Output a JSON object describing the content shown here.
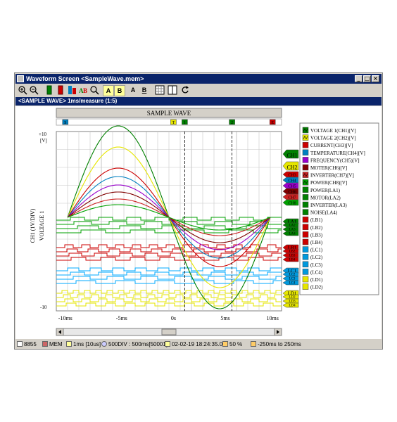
{
  "window": {
    "title": "Waveform Screen <SampleWave.mem>",
    "buttons": [
      "_",
      "□",
      "×"
    ]
  },
  "toolbar": {
    "tools": [
      "zoom-in",
      "zoom-out",
      "ch-up",
      "ch-dn",
      "cursor-a",
      "cursor-b",
      "search",
      "A",
      "B",
      "A",
      "B",
      "grid",
      "split",
      "refresh"
    ]
  },
  "subbar": {
    "text": "<SAMPLE WAVE> 1ms/measure (1:5)"
  },
  "plot": {
    "title": "SAMPLE WAVE",
    "y_top": "+10",
    "y_unit": "[V]",
    "y_bottom": "-10",
    "y_label_1": "CH1 (1V/DIV)",
    "y_label_2": "VOLTAGE 1",
    "x_ticks": [
      "-10ms",
      "-5ms",
      "0s",
      "5ms",
      "10ms"
    ],
    "markers": [
      "S",
      "T",
      "1",
      "2",
      "E"
    ],
    "right_tags": [
      {
        "label": "CH1",
        "color": "#008000",
        "kind": "big"
      },
      {
        "label": "CH2",
        "color": "#e6e600",
        "kind": "big"
      },
      {
        "label": "CH3",
        "color": "#cc0000",
        "kind": "small"
      },
      {
        "label": "CH4",
        "color": "#0080c0",
        "kind": "small"
      },
      {
        "label": "CH5",
        "color": "#9900cc",
        "kind": "small"
      },
      {
        "label": "CH6",
        "color": "#800000",
        "kind": "small"
      },
      {
        "label": "CH7",
        "color": "#cc2222",
        "kind": "small"
      },
      {
        "label": "CH8",
        "color": "#00a000",
        "kind": "small"
      },
      {
        "label": "LA1",
        "color": "#008000",
        "kind": "logic"
      },
      {
        "label": "LA2",
        "color": "#008000",
        "kind": "sub"
      },
      {
        "label": "LA3",
        "color": "#008000",
        "kind": "sub"
      },
      {
        "label": "LA4",
        "color": "#008000",
        "kind": "sub"
      },
      {
        "label": "LB1",
        "color": "#cc0000",
        "kind": "logic"
      },
      {
        "label": "LB2",
        "color": "#cc0000",
        "kind": "sub"
      },
      {
        "label": "LB3",
        "color": "#cc0000",
        "kind": "sub"
      },
      {
        "label": "LB4",
        "color": "#cc0000",
        "kind": "sub"
      },
      {
        "label": "LC1",
        "color": "#0099dd",
        "kind": "logic"
      },
      {
        "label": "LC2",
        "color": "#0099dd",
        "kind": "sub"
      },
      {
        "label": "LC3",
        "color": "#0099dd",
        "kind": "sub"
      },
      {
        "label": "LC4",
        "color": "#0099dd",
        "kind": "sub"
      },
      {
        "label": "LD1",
        "color": "#e6e600",
        "kind": "logic"
      },
      {
        "label": "LD2",
        "color": "#e6e600",
        "kind": "sub"
      },
      {
        "label": "LD3",
        "color": "#e6e600",
        "kind": "sub"
      },
      {
        "label": "LD4",
        "color": "#e6e600",
        "kind": "sub"
      }
    ]
  },
  "legend": {
    "items": [
      {
        "label": "VOLTAGE 1(CH1)[V]",
        "color": "#008000",
        "icon": "wave"
      },
      {
        "label": "VOLTAGE 2(CH2)[V]",
        "color": "#e6e600",
        "icon": "wave"
      },
      {
        "label": "CURRENT(CH3)[V]",
        "color": "#cc0000",
        "icon": "box"
      },
      {
        "label": "TEMPERATURE(CH4)[V]",
        "color": "#0080c0",
        "icon": "box"
      },
      {
        "label": "FREQUENCY(CH5)[V]",
        "color": "#9900cc",
        "icon": "box"
      },
      {
        "label": "MOTER(CH6)[V]",
        "color": "#800000",
        "icon": "box"
      },
      {
        "label": "INVERTER(CH7)[V]",
        "color": "#cc2222",
        "icon": "wave"
      },
      {
        "label": "POWER(CH8)[V]",
        "color": "#00a000",
        "icon": "wave"
      },
      {
        "label": "POWER(LA1)",
        "color": "#008000",
        "icon": "box"
      },
      {
        "label": "MOTOR(LA2)",
        "color": "#008000",
        "icon": "box"
      },
      {
        "label": "INVERTER(LA3)",
        "color": "#008000",
        "icon": "box"
      },
      {
        "label": "NOISE(LA4)",
        "color": "#008000",
        "icon": "box"
      },
      {
        "label": "(LB1)",
        "color": "#cc0000",
        "icon": "box"
      },
      {
        "label": "(LB2)",
        "color": "#cc0000",
        "icon": "box"
      },
      {
        "label": "(LB3)",
        "color": "#cc0000",
        "icon": "box"
      },
      {
        "label": "(LB4)",
        "color": "#cc0000",
        "icon": "box"
      },
      {
        "label": "(LC1)",
        "color": "#0099dd",
        "icon": "box"
      },
      {
        "label": "(LC2)",
        "color": "#0099dd",
        "icon": "box"
      },
      {
        "label": "(LC3)",
        "color": "#0099dd",
        "icon": "box"
      },
      {
        "label": "(LC4)",
        "color": "#0099dd",
        "icon": "box"
      },
      {
        "label": "(LD1)",
        "color": "#e6e600",
        "icon": "box"
      },
      {
        "label": "(LD2)",
        "color": "#e6e600",
        "icon": "box"
      }
    ]
  },
  "status": {
    "count": "8855",
    "mem": "MEM",
    "interval": "1ms [10us]",
    "div": "500DIV : 500ms[50001]",
    "datetime": "02-02-19 18:24:35.03",
    "zoom": "50 %",
    "range": "-250ms to 250ms"
  },
  "colors": {
    "title_bar": "#0a246a",
    "plot_bg": "#ffffff",
    "grid": "#c8c8c8",
    "ch1": "#008000",
    "ch2": "#e6e600",
    "ch3": "#cc0000",
    "ch4": "#0080c0",
    "ch5": "#9900cc",
    "ch6": "#800000",
    "ch7": "#cc2222",
    "ch8": "#00a000",
    "la": "#00a000",
    "lb": "#cc0000",
    "lc": "#00aaff",
    "ld": "#e6e600"
  }
}
